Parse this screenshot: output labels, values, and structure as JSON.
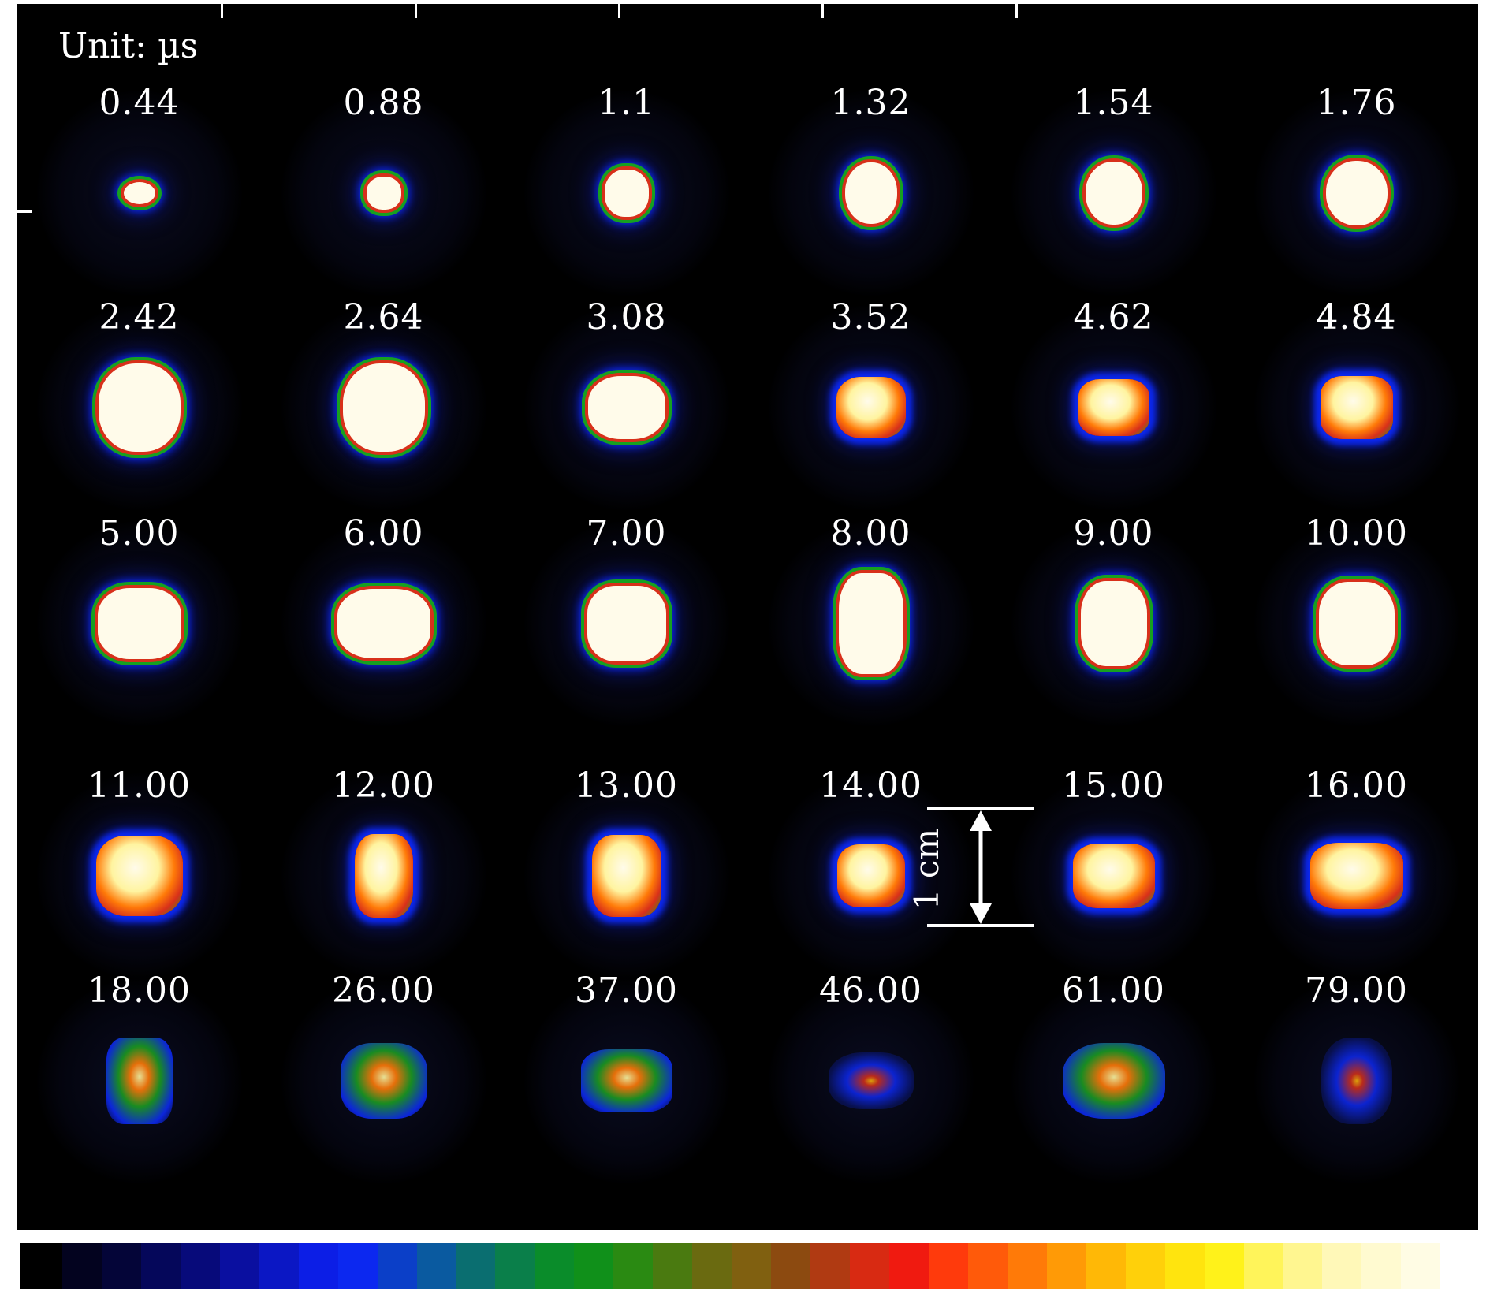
{
  "figure": {
    "unit_label": "Unit: µs",
    "scale_bar_label": "1 cm",
    "frames": [
      {
        "time": "0.44",
        "row": 0,
        "col": 0
      },
      {
        "time": "0.88",
        "row": 0,
        "col": 1
      },
      {
        "time": "1.1",
        "row": 0,
        "col": 2
      },
      {
        "time": "1.32",
        "row": 0,
        "col": 3
      },
      {
        "time": "1.54",
        "row": 0,
        "col": 4
      },
      {
        "time": "1.76",
        "row": 0,
        "col": 5
      },
      {
        "time": "2.42",
        "row": 1,
        "col": 0
      },
      {
        "time": "2.64",
        "row": 1,
        "col": 1
      },
      {
        "time": "3.08",
        "row": 1,
        "col": 2
      },
      {
        "time": "3.52",
        "row": 1,
        "col": 3
      },
      {
        "time": "4.62",
        "row": 1,
        "col": 4
      },
      {
        "time": "4.84",
        "row": 1,
        "col": 5
      },
      {
        "time": "5.00",
        "row": 2,
        "col": 0
      },
      {
        "time": "6.00",
        "row": 2,
        "col": 1
      },
      {
        "time": "7.00",
        "row": 2,
        "col": 2
      },
      {
        "time": "8.00",
        "row": 2,
        "col": 3
      },
      {
        "time": "9.00",
        "row": 2,
        "col": 4
      },
      {
        "time": "10.00",
        "row": 2,
        "col": 5
      },
      {
        "time": "11.00",
        "row": 3,
        "col": 0
      },
      {
        "time": "12.00",
        "row": 3,
        "col": 1
      },
      {
        "time": "13.00",
        "row": 3,
        "col": 2
      },
      {
        "time": "14.00",
        "row": 3,
        "col": 3
      },
      {
        "time": "15.00",
        "row": 3,
        "col": 4
      },
      {
        "time": "16.00",
        "row": 3,
        "col": 5
      },
      {
        "time": "18.00",
        "row": 4,
        "col": 0
      },
      {
        "time": "26.00",
        "row": 4,
        "col": 1
      },
      {
        "time": "37.00",
        "row": 4,
        "col": 2
      },
      {
        "time": "46.00",
        "row": 4,
        "col": 3
      },
      {
        "time": "61.00",
        "row": 4,
        "col": 4
      },
      {
        "time": "79.00",
        "row": 4,
        "col": 5
      }
    ],
    "colormap": [
      "#000000",
      "#03031f",
      "#040538",
      "#05075a",
      "#070a7a",
      "#0a0fa0",
      "#0b17c4",
      "#0c1ee6",
      "#0c28f0",
      "#0b3fc8",
      "#0a5aa0",
      "#0a6e70",
      "#0a7f4a",
      "#0a8c2a",
      "#10901a",
      "#2a8a12",
      "#4a7a10",
      "#6a6a10",
      "#806010",
      "#8c4a10",
      "#b03a12",
      "#d82a12",
      "#f01a10",
      "#ff3a0c",
      "#ff5a0a",
      "#ff7a08",
      "#ff9a06",
      "#ffb806",
      "#ffd00a",
      "#ffe40e",
      "#fff21a",
      "#fff45a",
      "#fff690",
      "#fff8b8",
      "#fffad0",
      "#fffce4",
      "#ffffff"
    ]
  }
}
